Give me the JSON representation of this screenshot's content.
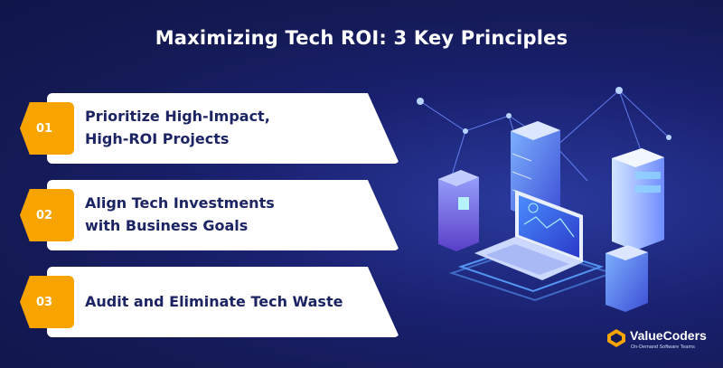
{
  "title": "Maximizing Tech ROI: 3 Key Principles",
  "principles": [
    {
      "number": "01",
      "text": "Prioritize High-Impact,\nHigh-ROI Projects"
    },
    {
      "number": "02",
      "text": "Align Tech Investments\nwith Business Goals"
    },
    {
      "number": "03",
      "text": "Audit and Eliminate Tech Waste"
    }
  ],
  "brand": {
    "name": "ValueCoders",
    "tagline": "On-Demand Software Teams",
    "logo_icon": "valuecoders-logo-icon"
  },
  "illustration": {
    "icon": "server-network-laptop-icon"
  },
  "colors": {
    "background": "#141a55",
    "accent": "#f7a300",
    "card": "#ffffff",
    "card_text": "#1c2463"
  }
}
